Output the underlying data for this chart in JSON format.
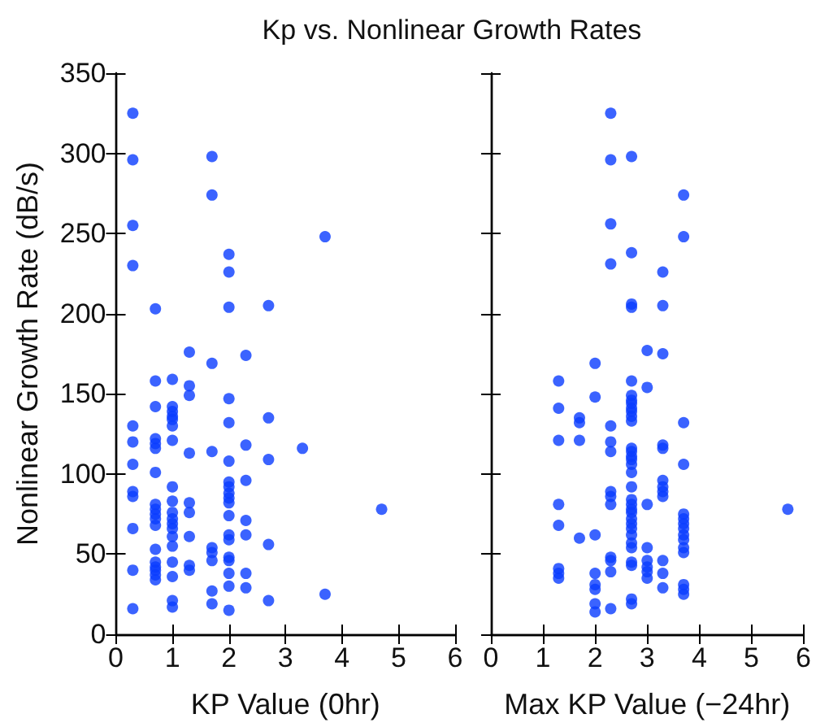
{
  "chart_data": [
    {
      "type": "scatter",
      "title": "Kp vs. Nonlinear Growth Rates",
      "xlabel": "KP Value (0hr)",
      "ylabel": "Nonlinear Growth Rate (dB/s)",
      "color": "#0a3cff",
      "marker": "circle",
      "xlim": [
        0,
        6
      ],
      "xticks": [
        0,
        1,
        2,
        3,
        4,
        5,
        6
      ],
      "ylim": [
        0,
        350
      ],
      "yticks": [
        0,
        50,
        100,
        150,
        200,
        250,
        300,
        350
      ],
      "x": [
        0.3,
        0.3,
        0.3,
        0.3,
        0.3,
        0.3,
        0.3,
        0.3,
        0.3,
        0.3,
        0.3,
        0.3,
        0.7,
        0.7,
        0.7,
        0.7,
        0.7,
        0.7,
        0.7,
        0.7,
        0.7,
        0.7,
        0.7,
        0.7,
        0.7,
        0.7,
        0.7,
        0.7,
        0.7,
        0.7,
        1,
        1,
        1,
        1,
        1,
        1,
        1,
        1,
        1,
        1,
        1,
        1,
        1,
        1,
        1,
        1,
        1,
        1,
        1,
        1.3,
        1.3,
        1.3,
        1.3,
        1.3,
        1.3,
        1.3,
        1.3,
        1.3,
        1.7,
        1.7,
        1.7,
        1.7,
        1.7,
        1.7,
        1.7,
        1.7,
        1.7,
        2,
        2,
        2,
        2,
        2,
        2,
        2,
        2,
        2,
        2,
        2,
        2,
        2,
        2,
        2,
        2,
        2,
        2,
        2,
        2.3,
        2.3,
        2.3,
        2.3,
        2.3,
        2.3,
        2.3,
        2.7,
        2.7,
        2.7,
        2.7,
        2.7,
        3.3,
        3.7,
        3.7,
        4.7
      ],
      "values": [
        325,
        296,
        255,
        230,
        130,
        120,
        106,
        89,
        86,
        66,
        40,
        16,
        203,
        158,
        142,
        122,
        119,
        116,
        101,
        81,
        78,
        75,
        72,
        68,
        53,
        45,
        42,
        40,
        37,
        34,
        159,
        142,
        139,
        136,
        134,
        130,
        121,
        92,
        83,
        76,
        72,
        69,
        66,
        61,
        55,
        45,
        36,
        21,
        17,
        176,
        155,
        149,
        113,
        82,
        76,
        61,
        43,
        40,
        298,
        274,
        169,
        114,
        54,
        51,
        46,
        27,
        19,
        237,
        226,
        204,
        147,
        132,
        108,
        95,
        92,
        88,
        85,
        82,
        74,
        62,
        59,
        48,
        46,
        38,
        30,
        15,
        174,
        118,
        96,
        71,
        62,
        38,
        29,
        205,
        135,
        109,
        56,
        21,
        116,
        248,
        25,
        78
      ]
    },
    {
      "type": "scatter",
      "xlabel": "Max KP Value (−24hr)",
      "color": "#0a3cff",
      "marker": "circle",
      "xlim": [
        0,
        6
      ],
      "xticks": [
        0,
        1,
        2,
        3,
        4,
        5,
        6
      ],
      "ylim": [
        0,
        350
      ],
      "yticks": [
        0,
        50,
        100,
        150,
        200,
        250,
        300,
        350
      ],
      "tick_labels": "x",
      "x": [
        1.3,
        1.3,
        1.3,
        1.3,
        1.3,
        1.3,
        1.3,
        1.3,
        1.7,
        1.7,
        1.7,
        1.7,
        2,
        2,
        2,
        2,
        2,
        2,
        2,
        2,
        2.3,
        2.3,
        2.3,
        2.3,
        2.3,
        2.3,
        2.3,
        2.3,
        2.3,
        2.3,
        2.3,
        2.3,
        2.3,
        2.3,
        2.7,
        2.7,
        2.7,
        2.7,
        2.7,
        2.7,
        2.7,
        2.7,
        2.7,
        2.7,
        2.7,
        2.7,
        2.7,
        2.7,
        2.7,
        2.7,
        2.7,
        2.7,
        2.7,
        2.7,
        2.7,
        2.7,
        2.7,
        2.7,
        2.7,
        2.7,
        2.7,
        2.7,
        2.7,
        2.7,
        2.7,
        2.7,
        2.7,
        3,
        3,
        3,
        3,
        3,
        3,
        3,
        3,
        3.3,
        3.3,
        3.3,
        3.3,
        3.3,
        3.3,
        3.3,
        3.3,
        3.3,
        3.3,
        3.3,
        3.3,
        3.7,
        3.7,
        3.7,
        3.7,
        3.7,
        3.7,
        3.7,
        3.7,
        3.7,
        3.7,
        3.7,
        3.7,
        3.7,
        3.7,
        3.7,
        5.7
      ],
      "values": [
        158,
        141,
        121,
        81,
        68,
        41,
        38,
        35,
        135,
        132,
        121,
        60,
        169,
        148,
        62,
        38,
        31,
        28,
        19,
        14,
        325,
        296,
        256,
        231,
        130,
        120,
        114,
        89,
        86,
        81,
        48,
        46,
        39,
        16,
        298,
        238,
        206,
        204,
        158,
        149,
        146,
        144,
        141,
        139,
        136,
        133,
        116,
        114,
        111,
        109,
        106,
        101,
        92,
        84,
        81,
        78,
        76,
        72,
        69,
        66,
        62,
        57,
        54,
        45,
        43,
        22,
        19,
        177,
        154,
        81,
        54,
        46,
        42,
        39,
        35,
        226,
        205,
        175,
        118,
        116,
        96,
        92,
        89,
        86,
        46,
        38,
        29,
        274,
        248,
        132,
        106,
        75,
        72,
        69,
        66,
        62,
        59,
        54,
        51,
        31,
        28,
        25,
        78
      ]
    }
  ]
}
